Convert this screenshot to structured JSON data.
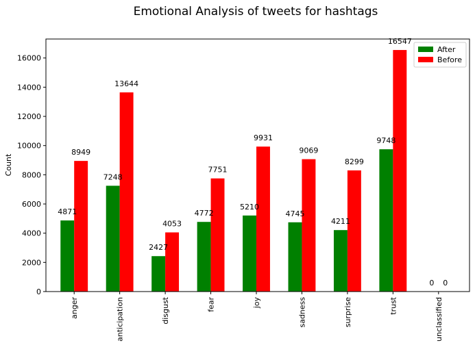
{
  "chart_data": {
    "type": "bar",
    "title": "Emotional Analysis of tweets for hashtags",
    "xlabel": "",
    "ylabel": "Count",
    "ylim": [
      0,
      17300
    ],
    "yticks": [
      0,
      2000,
      4000,
      6000,
      8000,
      10000,
      12000,
      14000,
      16000
    ],
    "categories": [
      "anger",
      "anticipation",
      "disgust",
      "fear",
      "joy",
      "sadness",
      "surprise",
      "trust",
      "unclassified"
    ],
    "series": [
      {
        "name": "After",
        "color": "#008000",
        "values": [
          4871,
          7248,
          2427,
          4772,
          5210,
          4745,
          4211,
          9748,
          0
        ]
      },
      {
        "name": "Before",
        "color": "#ff0000",
        "values": [
          8949,
          13644,
          4053,
          7751,
          9931,
          9069,
          8299,
          16547,
          0
        ]
      }
    ],
    "legend": {
      "placement": "top-right"
    },
    "grid": false
  }
}
